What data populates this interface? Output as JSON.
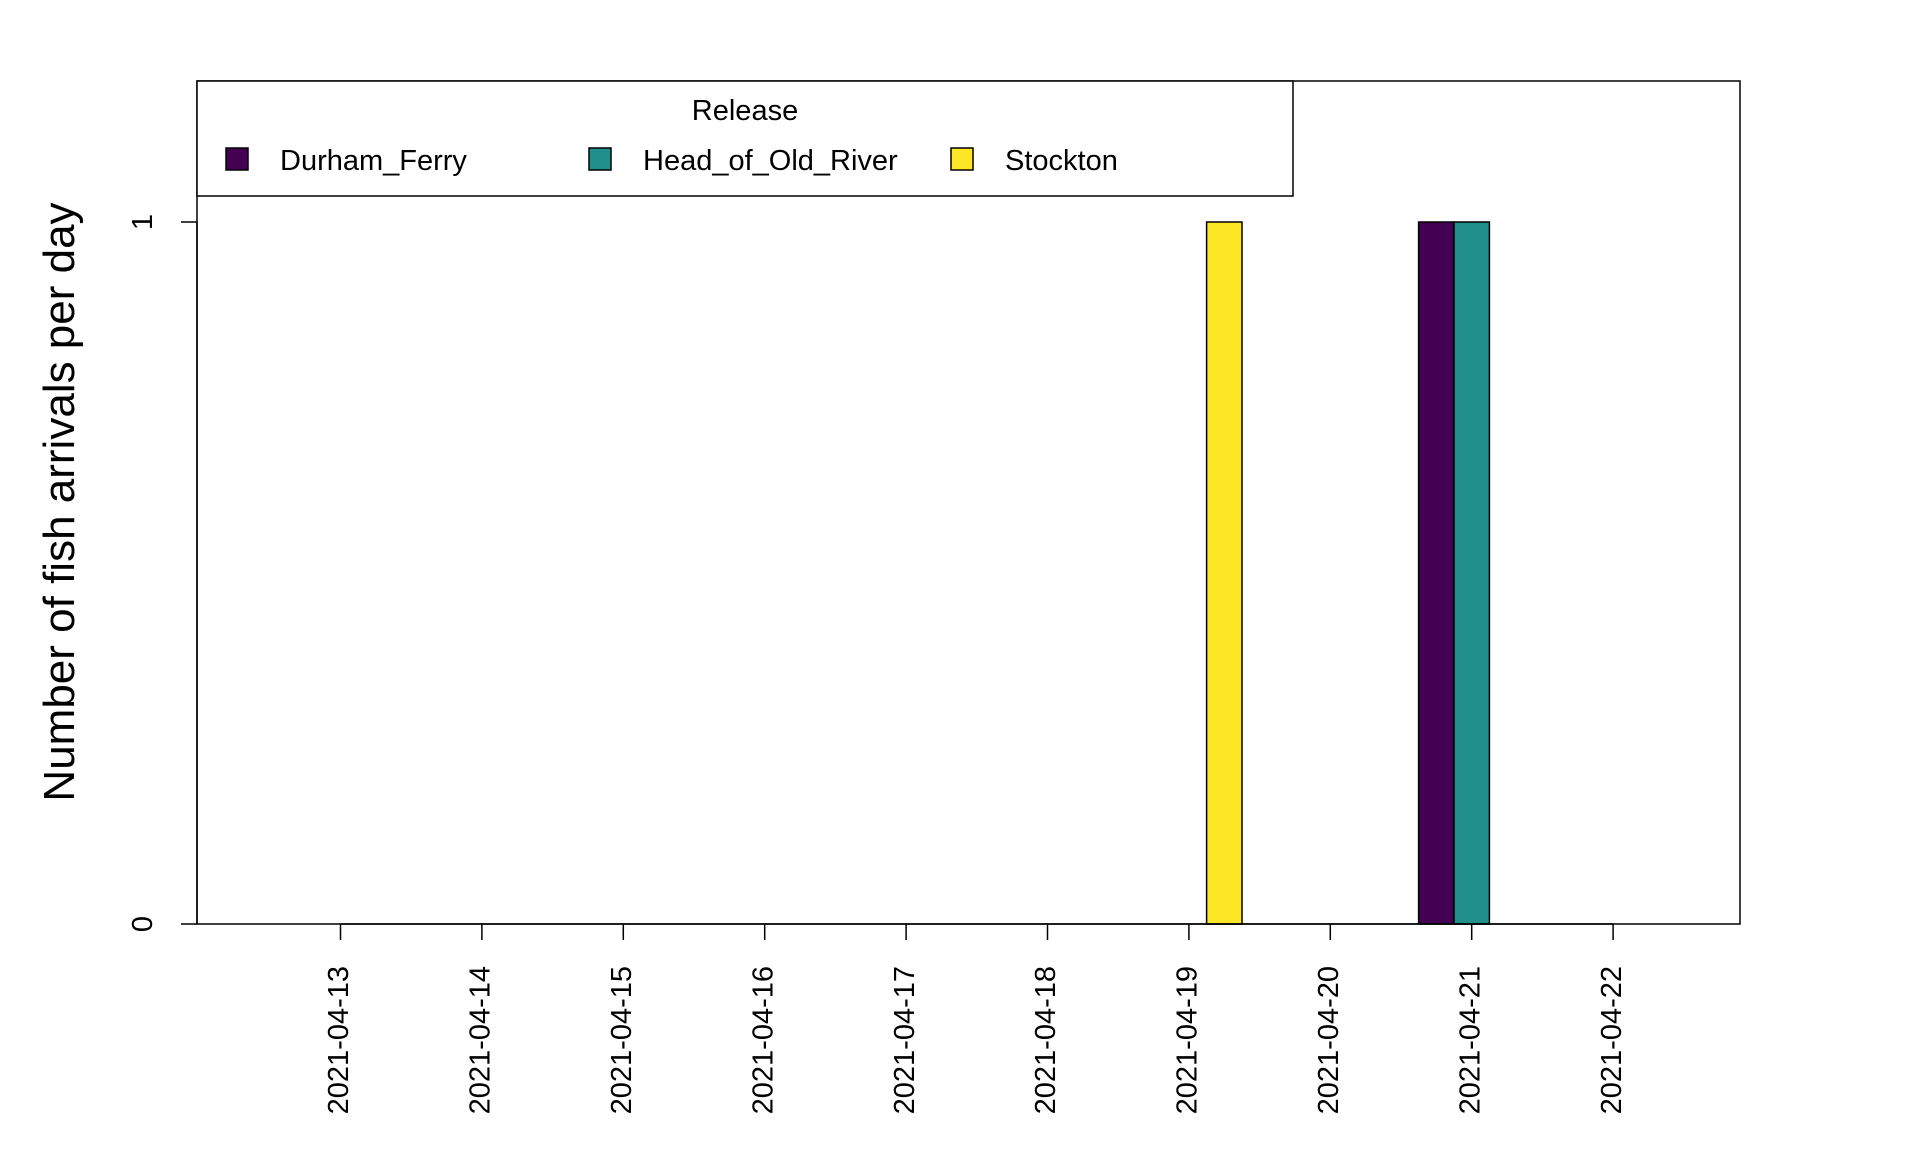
{
  "chart_data": {
    "type": "bar",
    "title": "",
    "xlabel": "",
    "ylabel": "Number of fish arrivals per day",
    "ylim": [
      0,
      1.2
    ],
    "yticks": [
      0,
      1
    ],
    "grid": false,
    "categories": [
      "2021-04-13",
      "2021-04-14",
      "2021-04-15",
      "2021-04-16",
      "2021-04-17",
      "2021-04-18",
      "2021-04-19",
      "2021-04-20",
      "2021-04-21",
      "2021-04-22"
    ],
    "series": [
      {
        "name": "Durham_Ferry",
        "color": "#440154",
        "values": [
          0,
          0,
          0,
          0,
          0,
          0,
          0,
          0,
          1,
          0
        ]
      },
      {
        "name": "Head_of_Old_River",
        "color": "#21908C",
        "values": [
          0,
          0,
          0,
          0,
          0,
          0,
          0,
          0,
          1,
          0
        ]
      },
      {
        "name": "Stockton",
        "color": "#FDE725",
        "values": [
          0,
          0,
          0,
          0,
          0,
          0,
          1,
          0,
          0,
          0
        ]
      }
    ],
    "legend": {
      "title": "Release",
      "placement": "top-left"
    }
  }
}
